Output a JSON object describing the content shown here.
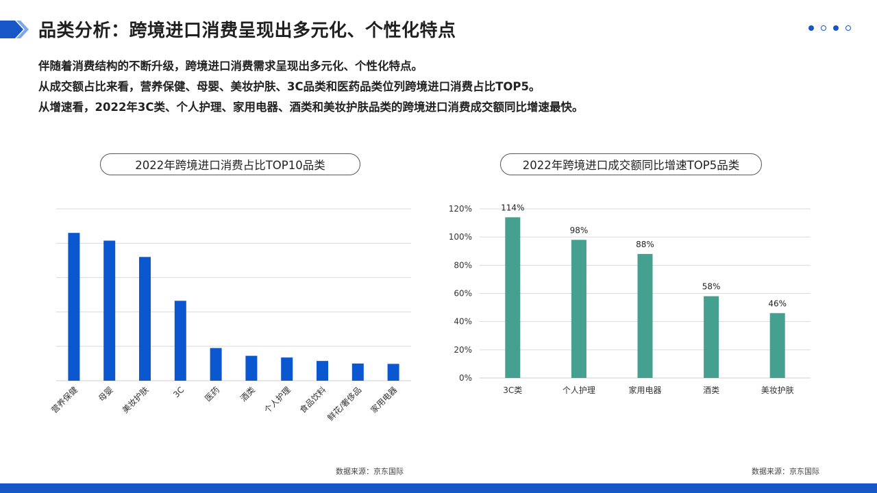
{
  "page": {
    "title": "品类分析：跨境进口消费呈现出多元化、个性化特点",
    "intro": [
      "伴随着消费结构的不断升级，跨境进口消费需求呈现出多元化、个性化特点。",
      "从成交额占比来看，营养保健、母婴、美妆护肤、3C品类和医药品类位列跨境进口消费占比TOP5。",
      "从增速看，2022年3C类、个人护理、家用电器、酒类和美妆护肤品类的跨境进口消费成交额同比增速最快。"
    ],
    "accent_color": "#1756c7",
    "pagination": [
      "filled",
      "hollow",
      "filled",
      "hollow"
    ]
  },
  "chart_data": [
    {
      "type": "bar",
      "title": "2022年跨境进口消费占比TOP10品类",
      "categories": [
        "营养保健",
        "母婴",
        "美妆护肤",
        "3C",
        "医药",
        "酒类",
        "个人护理",
        "食品饮料",
        "鲜花/奢侈品",
        "家用电器"
      ],
      "values": [
        8.6,
        8.15,
        7.2,
        4.65,
        1.9,
        1.45,
        1.35,
        1.15,
        1.0,
        0.98
      ],
      "ylim": [
        0,
        10
      ],
      "y_tick_labels": "none",
      "grid": true,
      "color": "#0b57d0",
      "source": "数据来源：京东国际"
    },
    {
      "type": "bar",
      "title": "2022年跨境进口成交额同比增速TOP5品类",
      "categories": [
        "3C类",
        "个人护理",
        "家用电器",
        "酒类",
        "美妆护肤"
      ],
      "values": [
        114,
        98,
        88,
        58,
        46
      ],
      "data_labels": [
        "114%",
        "98%",
        "88%",
        "58%",
        "46%"
      ],
      "ylim": [
        0,
        120
      ],
      "y_ticks": [
        0,
        20,
        40,
        60,
        80,
        100,
        120
      ],
      "y_tick_labels": [
        "0%",
        "20%",
        "40%",
        "60%",
        "80%",
        "100%",
        "120%"
      ],
      "grid": true,
      "color": "#45a090",
      "source": "数据来源：京东国际"
    }
  ]
}
